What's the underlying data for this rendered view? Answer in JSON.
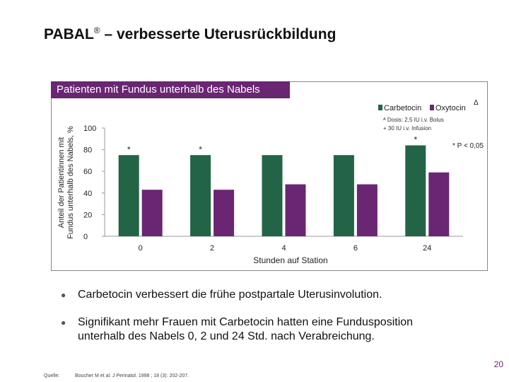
{
  "title": {
    "text": "PABAL",
    "registered": "®",
    "rest": " – verbesserte Uterusrückbildung"
  },
  "panel_header": "Patienten mit Fundus unterhalb des Nabels",
  "chart_data": {
    "type": "bar",
    "categories": [
      "0",
      "2",
      "4",
      "6",
      "24"
    ],
    "series": [
      {
        "name": "Carbetocin",
        "values": [
          75,
          75,
          75,
          75,
          84
        ],
        "color": "#236446"
      },
      {
        "name": "Oxytocin",
        "values": [
          43,
          43,
          48,
          48,
          59
        ],
        "color": "#6a2672"
      }
    ],
    "significance_labels": [
      "*",
      "*",
      "",
      "",
      "*"
    ],
    "xlabel": "Stunden auf Station",
    "ylabel_lines": [
      "Anteil der Patientinnen mit",
      "Fundus unterhalb des Nabels, %"
    ],
    "ylim": [
      0,
      100
    ],
    "yticks": [
      0,
      20,
      40,
      60,
      80,
      100
    ],
    "legend": {
      "items": [
        "Carbetocin",
        "Oxytocin"
      ],
      "marker": "Δ"
    },
    "dose_note": [
      "ᴬ Dosis: 2,5 IU i.v. Bolus",
      "+ 30 IU i.v. Infusion"
    ],
    "p_note": "* P < 0,05"
  },
  "bullets": [
    {
      "lines": [
        "Carbetocin verbessert die frühe postpartale Uterusinvolution."
      ]
    },
    {
      "lines": [
        "Signifikant mehr Frauen mit Carbetocin hatten eine Fundusposition",
        "unterhalb des Nabels 0, 2 und 24 Std. nach Verabreichung."
      ]
    }
  ],
  "bullet_symbol": "●",
  "page_number": "20",
  "source": {
    "label": "Quelle:",
    "text": "Boucher M et al. J Perinatol. 1998 ; 18 (3): 202-207."
  }
}
